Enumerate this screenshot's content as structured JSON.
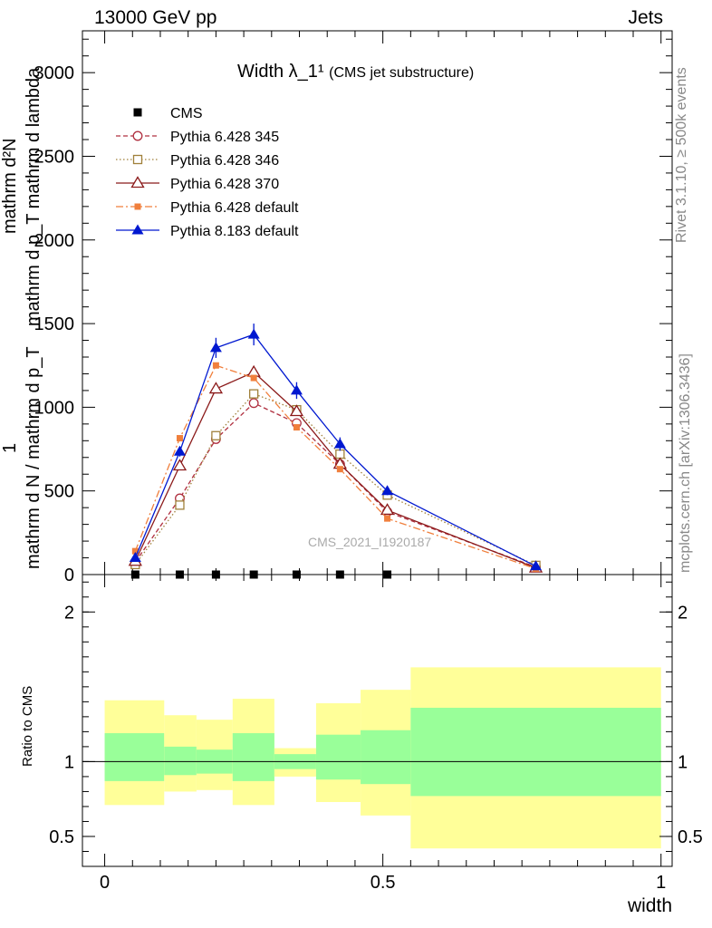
{
  "header": {
    "energy": "13000 GeV pp",
    "process": "Jets",
    "rivet": "Rivet 3.1.10, ≥ 500k events",
    "mcplots": "mcplots.cern.ch [arXiv:1306.3436]"
  },
  "chart_data": [
    {
      "type": "line",
      "title": "Width λ_1¹",
      "subtitle": "(CMS jet substructure)",
      "watermark": "CMS_2021_I1920187",
      "xlabel": "width",
      "ylabel_numerator": "mathrm d²N",
      "ylabel_denominator": "mathrm d p_T mathrm d lambda",
      "ylabel_prefix": "1",
      "ylabel_prefix_denominator": "mathrm d N / mathrm d p_T",
      "xlim": [
        -0.04,
        1.02
      ],
      "ylim": [
        0,
        3250
      ],
      "yticks": [
        0,
        500,
        1000,
        1500,
        2000,
        2500,
        3000
      ],
      "ytick_labels": [
        "0",
        "500",
        "1000",
        "1500",
        "2000",
        "2500",
        "3000"
      ],
      "legend_position": "top-left",
      "series": [
        {
          "name": "CMS",
          "color": "#000000",
          "marker": "square-filled",
          "line": "none",
          "x": [
            0.055,
            0.135,
            0.2,
            0.268,
            0.345,
            0.423,
            0.508
          ],
          "y": [
            0,
            0,
            0,
            0,
            0,
            0,
            0
          ]
        },
        {
          "name": "Pythia 6.428 345",
          "color": "#b03040",
          "marker": "circle-open",
          "line": "dashed",
          "x": [
            0.055,
            0.135,
            0.2,
            0.268,
            0.345,
            0.423,
            0.508,
            0.775
          ],
          "y": [
            75,
            455,
            810,
            1025,
            905,
            660,
            375,
            45
          ]
        },
        {
          "name": "Pythia 6.428 346",
          "color": "#a0803a",
          "marker": "square-open",
          "line": "dotted",
          "x": [
            0.055,
            0.135,
            0.2,
            0.268,
            0.345,
            0.423,
            0.508,
            0.775
          ],
          "y": [
            60,
            415,
            830,
            1080,
            985,
            720,
            475,
            55
          ]
        },
        {
          "name": "Pythia 6.428 370",
          "color": "#8b1a1a",
          "marker": "triangle-open",
          "line": "solid",
          "x": [
            0.055,
            0.135,
            0.2,
            0.268,
            0.345,
            0.423,
            0.508,
            0.775
          ],
          "y": [
            80,
            650,
            1110,
            1210,
            975,
            660,
            385,
            40
          ]
        },
        {
          "name": "Pythia 6.428 default",
          "color": "#f07f3c",
          "marker": "square-filled-small",
          "line": "dashdot",
          "x": [
            0.055,
            0.135,
            0.2,
            0.268,
            0.345,
            0.423,
            0.508,
            0.775
          ],
          "y": [
            140,
            815,
            1250,
            1175,
            880,
            630,
            335,
            35
          ]
        },
        {
          "name": "Pythia 8.183 default",
          "color": "#0018d0",
          "marker": "triangle-filled",
          "line": "solid",
          "x": [
            0.055,
            0.135,
            0.2,
            0.268,
            0.345,
            0.423,
            0.508,
            0.775
          ],
          "y": [
            100,
            735,
            1355,
            1435,
            1100,
            780,
            500,
            50
          ],
          "yerr": [
            0,
            30,
            60,
            65,
            50,
            40,
            25,
            0
          ]
        }
      ]
    },
    {
      "type": "area",
      "ylabel": "Ratio to CMS",
      "xlim": [
        -0.04,
        1.02
      ],
      "ylim": [
        0.3,
        2.25
      ],
      "yticks": [
        0.5,
        1,
        2
      ],
      "ytick_labels": [
        "0.5",
        "1",
        "2"
      ],
      "xticks": [
        0,
        0.5,
        1
      ],
      "xtick_labels": [
        "0",
        "0.5",
        "1"
      ],
      "bands": [
        {
          "x0": 0.0,
          "x1": 0.107,
          "g_lo": 0.87,
          "g_hi": 1.19,
          "y_lo": 0.71,
          "y_hi": 1.41
        },
        {
          "x0": 0.107,
          "x1": 0.165,
          "g_lo": 0.91,
          "g_hi": 1.1,
          "y_lo": 0.8,
          "y_hi": 1.31
        },
        {
          "x0": 0.165,
          "x1": 0.23,
          "g_lo": 0.92,
          "g_hi": 1.08,
          "y_lo": 0.81,
          "y_hi": 1.28
        },
        {
          "x0": 0.23,
          "x1": 0.305,
          "g_lo": 0.87,
          "g_hi": 1.19,
          "y_lo": 0.71,
          "y_hi": 1.42
        },
        {
          "x0": 0.305,
          "x1": 0.38,
          "g_lo": 0.95,
          "g_hi": 1.05,
          "y_lo": 0.9,
          "y_hi": 1.09
        },
        {
          "x0": 0.38,
          "x1": 0.46,
          "g_lo": 0.88,
          "g_hi": 1.18,
          "y_lo": 0.73,
          "y_hi": 1.39
        },
        {
          "x0": 0.46,
          "x1": 0.55,
          "g_lo": 0.85,
          "g_hi": 1.21,
          "y_lo": 0.64,
          "y_hi": 1.48
        },
        {
          "x0": 0.55,
          "x1": 1.0,
          "g_lo": 0.77,
          "g_hi": 1.36,
          "y_lo": 0.42,
          "y_hi": 1.63
        }
      ],
      "green_color": "#99ff99",
      "yellow_color": "#ffff99"
    }
  ]
}
